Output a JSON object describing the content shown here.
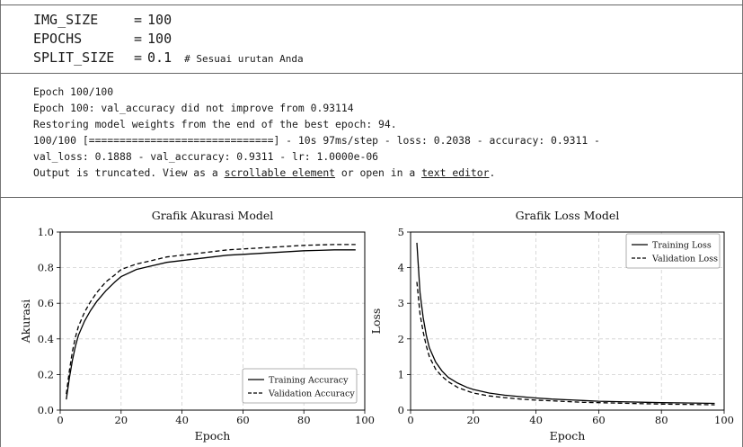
{
  "code": {
    "lines": [
      {
        "var": "IMG_SIZE",
        "op": "=",
        "value": "100",
        "comment": ""
      },
      {
        "var": "EPOCHS",
        "op": "=",
        "value": "100",
        "comment": ""
      },
      {
        "var": "SPLIT_SIZE",
        "op": "=",
        "value": "0.1",
        "comment": "# Sesuai urutan Anda"
      }
    ]
  },
  "output": {
    "lines": [
      "Epoch 100/100",
      "Epoch 100: val_accuracy did not improve from 0.93114",
      "Restoring model weights from the end of the best epoch: 94.",
      "100/100 [==============================] - 10s 97ms/step - loss: 0.2038 - accuracy: 0.9311 -",
      "val_loss: 0.1888 - val_accuracy: 0.9311 - lr: 1.0000e-06"
    ],
    "truncated_prefix": "Output is truncated. View as a ",
    "scrollable_link": "scrollable element",
    "truncated_middle": " or open in a ",
    "editor_link": "text editor",
    "truncated_suffix": "."
  },
  "chart_data": [
    {
      "type": "line",
      "title": "Grafik Akurasi Model",
      "xlabel": "Epoch",
      "ylabel": "Akurasi",
      "xlim": [
        0,
        100
      ],
      "ylim": [
        0.0,
        1.0
      ],
      "xticks": [
        "0",
        "20",
        "40",
        "60",
        "80",
        "100"
      ],
      "yticks": [
        "0.0",
        "0.2",
        "0.4",
        "0.6",
        "0.8",
        "1.0"
      ],
      "grid": true,
      "legend_position": "bottom-right",
      "x": [
        2,
        3,
        4,
        5,
        6,
        8,
        10,
        12,
        15,
        18,
        20,
        25,
        30,
        35,
        40,
        45,
        50,
        55,
        60,
        65,
        70,
        75,
        80,
        85,
        90,
        97
      ],
      "series": [
        {
          "name": "Training Accuracy",
          "style": "solid",
          "values": [
            0.06,
            0.18,
            0.28,
            0.36,
            0.42,
            0.5,
            0.56,
            0.61,
            0.67,
            0.72,
            0.75,
            0.79,
            0.81,
            0.83,
            0.84,
            0.85,
            0.86,
            0.87,
            0.875,
            0.88,
            0.885,
            0.89,
            0.895,
            0.897,
            0.9,
            0.9
          ]
        },
        {
          "name": "Validation Accuracy",
          "style": "dashed",
          "values": [
            0.09,
            0.22,
            0.33,
            0.41,
            0.47,
            0.55,
            0.61,
            0.66,
            0.72,
            0.76,
            0.79,
            0.82,
            0.84,
            0.86,
            0.87,
            0.88,
            0.89,
            0.9,
            0.905,
            0.91,
            0.915,
            0.92,
            0.925,
            0.928,
            0.93,
            0.93
          ]
        }
      ]
    },
    {
      "type": "line",
      "title": "Grafik Loss Model",
      "xlabel": "Epoch",
      "ylabel": "Loss",
      "xlim": [
        0,
        100
      ],
      "ylim": [
        0,
        5
      ],
      "xticks": [
        "0",
        "20",
        "40",
        "60",
        "80",
        "100"
      ],
      "yticks": [
        "0",
        "1",
        "2",
        "3",
        "4",
        "5"
      ],
      "grid": true,
      "legend_position": "top-right",
      "x": [
        2,
        3,
        4,
        5,
        6,
        8,
        10,
        12,
        15,
        18,
        20,
        25,
        30,
        35,
        40,
        45,
        50,
        55,
        60,
        65,
        70,
        75,
        80,
        85,
        90,
        97
      ],
      "series": [
        {
          "name": "Training Loss",
          "style": "solid",
          "values": [
            4.7,
            3.3,
            2.6,
            2.1,
            1.75,
            1.35,
            1.1,
            0.92,
            0.76,
            0.64,
            0.58,
            0.48,
            0.42,
            0.38,
            0.34,
            0.31,
            0.29,
            0.27,
            0.25,
            0.24,
            0.23,
            0.22,
            0.21,
            0.205,
            0.2,
            0.19
          ]
        },
        {
          "name": "Validation Loss",
          "style": "dashed",
          "values": [
            3.6,
            2.7,
            2.2,
            1.8,
            1.5,
            1.15,
            0.95,
            0.8,
            0.64,
            0.54,
            0.48,
            0.4,
            0.35,
            0.31,
            0.28,
            0.26,
            0.24,
            0.22,
            0.21,
            0.2,
            0.19,
            0.18,
            0.17,
            0.165,
            0.16,
            0.15
          ]
        }
      ]
    }
  ]
}
